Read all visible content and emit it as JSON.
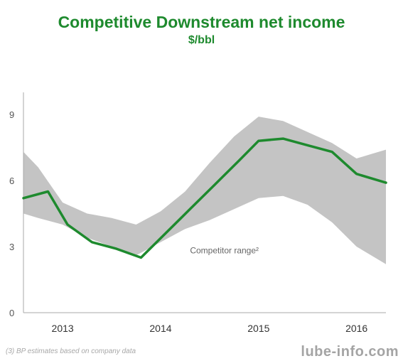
{
  "chart_data": {
    "type": "line",
    "title": "Competitive Downstream net income",
    "subtitle": "$/bbl",
    "xlabel": "",
    "ylabel": "",
    "ylim": [
      0,
      10
    ],
    "yticks": [
      0,
      3,
      6,
      9
    ],
    "xlim": [
      2012.6,
      2016.3
    ],
    "xticks": [
      {
        "value": 2013,
        "label": "2013"
      },
      {
        "value": 2014,
        "label": "2014"
      },
      {
        "value": 2015,
        "label": "2015"
      },
      {
        "value": 2016,
        "label": "2016"
      }
    ],
    "grid": false,
    "legend": "none",
    "band": {
      "x": [
        2012.6,
        2012.75,
        2013.0,
        2013.25,
        2013.5,
        2013.75,
        2014.0,
        2014.25,
        2014.5,
        2014.75,
        2015.0,
        2015.25,
        2015.5,
        2015.75,
        2016.0,
        2016.15,
        2016.3
      ],
      "upper": [
        7.3,
        6.6,
        5.0,
        4.5,
        4.3,
        4.0,
        4.6,
        5.5,
        6.8,
        8.0,
        8.9,
        8.7,
        8.2,
        7.7,
        7.0,
        7.2,
        7.4
      ],
      "lower": [
        4.5,
        4.3,
        4.0,
        3.4,
        3.0,
        2.6,
        3.2,
        3.8,
        4.2,
        4.7,
        5.2,
        5.3,
        4.9,
        4.1,
        3.0,
        2.6,
        2.2
      ],
      "color": "#c4c4c4"
    },
    "series": [
      {
        "x": [
          2012.6,
          2012.85,
          2013.05,
          2013.3,
          2013.55,
          2013.8,
          2014.05,
          2014.3,
          2014.55,
          2014.8,
          2015.0,
          2015.25,
          2015.5,
          2015.75,
          2016.0,
          2016.3
        ],
        "values": [
          5.2,
          5.5,
          4.0,
          3.2,
          2.9,
          2.5,
          3.6,
          4.7,
          5.8,
          6.9,
          7.8,
          7.9,
          7.6,
          7.3,
          6.3,
          5.9
        ],
        "color": "#1e8a2e"
      }
    ],
    "annotations": [
      {
        "text": "Competitor range²",
        "x": 2014.3,
        "y": 2.7
      }
    ]
  },
  "footnote": "(3) BP estimates based on company data",
  "watermark": "lube-info.com"
}
